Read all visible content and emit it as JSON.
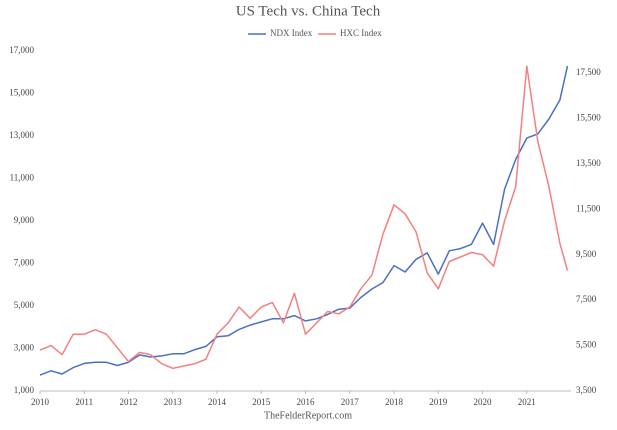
{
  "chart_data": {
    "type": "line",
    "title": "US Tech vs. China Tech",
    "source": "TheFelderReport.com",
    "x": [
      2010,
      2010.25,
      2010.5,
      2010.75,
      2011,
      2011.25,
      2011.5,
      2011.75,
      2012,
      2012.25,
      2012.5,
      2012.75,
      2013,
      2013.25,
      2013.5,
      2013.75,
      2014,
      2014.25,
      2014.5,
      2014.75,
      2015,
      2015.25,
      2015.5,
      2015.75,
      2016,
      2016.25,
      2016.5,
      2016.75,
      2017,
      2017.25,
      2017.5,
      2017.75,
      2018,
      2018.25,
      2018.5,
      2018.75,
      2019,
      2019.25,
      2019.5,
      2019.75,
      2020,
      2020.25,
      2020.5,
      2020.75,
      2021,
      2021.25,
      2021.5,
      2021.75,
      2021.92
    ],
    "series": [
      {
        "name": "NDX Index",
        "color": "#4a6fc4",
        "values": [
          1750,
          1950,
          1800,
          2100,
          2300,
          2350,
          2350,
          2200,
          2350,
          2700,
          2600,
          2650,
          2750,
          2750,
          2950,
          3100,
          3550,
          3600,
          3900,
          4100,
          4250,
          4400,
          4400,
          4550,
          4300,
          4400,
          4600,
          4850,
          4900,
          5400,
          5800,
          6100,
          6900,
          6600,
          7200,
          7500,
          6500,
          7600,
          7700,
          7900,
          8900,
          7900,
          10500,
          11900,
          12900,
          13100,
          13800,
          14700,
          16300
        ]
      },
      {
        "name": "HXC Index",
        "color": "#f28080",
        "axis": "y2",
        "values": [
          5300,
          5500,
          5100,
          6000,
          6000,
          6200,
          6000,
          5400,
          4800,
          5200,
          5100,
          4700,
          4500,
          4600,
          4700,
          4900,
          6000,
          6500,
          7200,
          6700,
          7200,
          7400,
          6500,
          7800,
          6000,
          6500,
          7000,
          6900,
          7200,
          8000,
          8600,
          10400,
          11700,
          11300,
          10500,
          8700,
          8000,
          9200,
          9400,
          9600,
          9500,
          9000,
          11000,
          12500,
          17800,
          14500,
          12500,
          10000,
          8800
        ]
      }
    ],
    "xlim": [
      2010,
      2022
    ],
    "xticks": [
      2010,
      2011,
      2012,
      2013,
      2014,
      2015,
      2016,
      2017,
      2018,
      2019,
      2020,
      2021
    ],
    "ylim": [
      1000,
      17000
    ],
    "yticks": [
      {
        "value": 1000,
        "label": "1,000"
      },
      {
        "value": 3000,
        "label": "3,000"
      },
      {
        "value": 5000,
        "label": "5,000"
      },
      {
        "value": 7000,
        "label": "7,000"
      },
      {
        "value": 9000,
        "label": "9,000"
      },
      {
        "value": 11000,
        "label": "11,000"
      },
      {
        "value": 13000,
        "label": "13,000"
      },
      {
        "value": 15000,
        "label": "15,000"
      },
      {
        "value": 17000,
        "label": "17,000"
      }
    ],
    "y2lim": [
      3500,
      18470
    ],
    "y2ticks": [
      {
        "value": 3500,
        "label": "3,500"
      },
      {
        "value": 5500,
        "label": "5,500"
      },
      {
        "value": 7500,
        "label": "7,500"
      },
      {
        "value": 9500,
        "label": "9,500"
      },
      {
        "value": 11500,
        "label": "11,500"
      },
      {
        "value": 13500,
        "label": "13,500"
      },
      {
        "value": 15500,
        "label": "15,500"
      },
      {
        "value": 17500,
        "label": "17,500"
      }
    ]
  }
}
